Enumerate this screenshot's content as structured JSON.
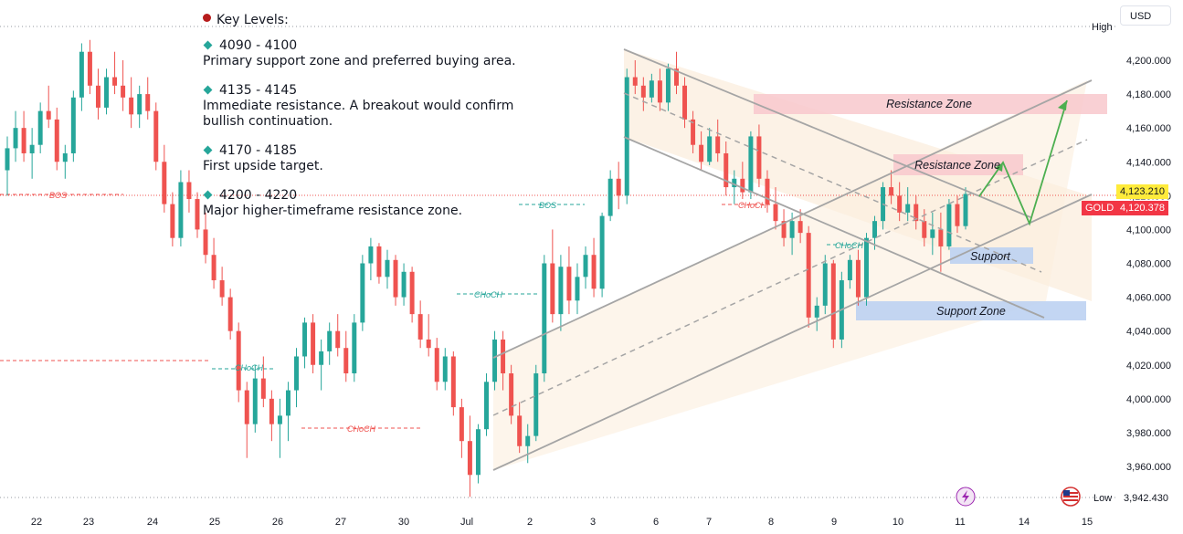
{
  "key_levels": {
    "title": "Key Levels:",
    "items": [
      {
        "range": "4090 - 4100",
        "desc": "Primary support zone and preferred buying area."
      },
      {
        "range": "4135 - 4145",
        "desc": "Immediate resistance. A breakout would confirm bullish continuation."
      },
      {
        "range": "4170 - 4185",
        "desc": "First upside target."
      },
      {
        "range": "4200 - 4220",
        "desc": "Major higher-timeframe resistance zone."
      }
    ]
  },
  "toolbar": {
    "currency": "USD"
  },
  "price_labels": {
    "high": "High",
    "low": "Low",
    "low_value": "3,942.430",
    "level_value": "4,123.210",
    "symbol": "GOLD",
    "last_value": "4,120.378"
  },
  "colors": {
    "bull": "#26a69a",
    "bear": "#ef5350",
    "resistance_zone": "#f8c8cc",
    "support_zone": "#bcd1f2",
    "channel_fill": "#fbeedd",
    "arrow": "#4caf50",
    "gold_tag": "#f23645",
    "level_tag": "#ffeb3b"
  },
  "chart_data": {
    "type": "candlestick",
    "symbol": "GOLD",
    "y_axis": {
      "min": 3940,
      "max": 4220,
      "ticks": [
        "4,200.000",
        "4,180.000",
        "4,160.000",
        "4,140.000",
        "4,120.000",
        "4,100.000",
        "4,080.000",
        "4,060.000",
        "4,040.000",
        "4,020.000",
        "4,000.000",
        "3,980.000",
        "3,960.000"
      ]
    },
    "x_axis": {
      "ticks": [
        "22",
        "23",
        "24",
        "25",
        "26",
        "27",
        "30",
        "Jul",
        "2",
        "3",
        "6",
        "7",
        "8",
        "9",
        "10",
        "11",
        "14",
        "15"
      ]
    },
    "zones": [
      {
        "label": "Resistance Zone",
        "low": 4169,
        "high": 4180
      },
      {
        "label": "Resistance Zone",
        "low": 4136,
        "high": 4144
      },
      {
        "label": "Support",
        "low": 4081,
        "high": 4090
      },
      {
        "label": "Support Zone",
        "low": 4052,
        "high": 4063
      }
    ],
    "structure_labels": [
      "BOS",
      "CHoCH",
      "CHoCH",
      "CHoCH",
      "BOS",
      "CHoCH",
      "CHoCH"
    ],
    "high_label": "High",
    "low_label": "Low",
    "low_value": 3942.43,
    "last_price": 4120.378,
    "level_price": 4123.21,
    "candles": [
      [
        4135,
        4155,
        4120,
        4148
      ],
      [
        4148,
        4170,
        4140,
        4160
      ],
      [
        4160,
        4170,
        4140,
        4145
      ],
      [
        4145,
        4160,
        4130,
        4150
      ],
      [
        4150,
        4175,
        4145,
        4170
      ],
      [
        4170,
        4185,
        4160,
        4165
      ],
      [
        4165,
        4172,
        4135,
        4140
      ],
      [
        4140,
        4150,
        4130,
        4145
      ],
      [
        4145,
        4182,
        4140,
        4178
      ],
      [
        4178,
        4210,
        4170,
        4205
      ],
      [
        4205,
        4212,
        4180,
        4185
      ],
      [
        4185,
        4195,
        4165,
        4172
      ],
      [
        4172,
        4195,
        4168,
        4190
      ],
      [
        4190,
        4205,
        4180,
        4185
      ],
      [
        4185,
        4200,
        4170,
        4178
      ],
      [
        4178,
        4190,
        4160,
        4168
      ],
      [
        4168,
        4185,
        4160,
        4180
      ],
      [
        4180,
        4190,
        4165,
        4170
      ],
      [
        4170,
        4175,
        4135,
        4140
      ],
      [
        4140,
        4150,
        4110,
        4115
      ],
      [
        4115,
        4122,
        4090,
        4095
      ],
      [
        4095,
        4135,
        4090,
        4128
      ],
      [
        4128,
        4135,
        4110,
        4118
      ],
      [
        4118,
        4122,
        4095,
        4100
      ],
      [
        4100,
        4110,
        4080,
        4085
      ],
      [
        4085,
        4095,
        4065,
        4070
      ],
      [
        4070,
        4078,
        4055,
        4060
      ],
      [
        4060,
        4065,
        4035,
        4040
      ],
      [
        4040,
        4045,
        3998,
        4005
      ],
      [
        4005,
        4010,
        3965,
        3985
      ],
      [
        3985,
        4020,
        3980,
        4012
      ],
      [
        4012,
        4025,
        3995,
        4000
      ],
      [
        4000,
        4005,
        3975,
        3985
      ],
      [
        3985,
        4000,
        3965,
        3990
      ],
      [
        3990,
        4010,
        3975,
        4005
      ],
      [
        4005,
        4030,
        3995,
        4025
      ],
      [
        4025,
        4048,
        4018,
        4045
      ],
      [
        4045,
        4050,
        4015,
        4020
      ],
      [
        4020,
        4035,
        4005,
        4028
      ],
      [
        4028,
        4045,
        4020,
        4040
      ],
      [
        4040,
        4050,
        4025,
        4030
      ],
      [
        4030,
        4040,
        4010,
        4015
      ],
      [
        4015,
        4050,
        4010,
        4045
      ],
      [
        4045,
        4085,
        4040,
        4080
      ],
      [
        4080,
        4095,
        4070,
        4090
      ],
      [
        4090,
        4092,
        4068,
        4072
      ],
      [
        4072,
        4088,
        4065,
        4082
      ],
      [
        4082,
        4085,
        4055,
        4060
      ],
      [
        4060,
        4080,
        4055,
        4075
      ],
      [
        4075,
        4078,
        4045,
        4050
      ],
      [
        4050,
        4058,
        4030,
        4035
      ],
      [
        4035,
        4050,
        4025,
        4030
      ],
      [
        4030,
        4036,
        4005,
        4010
      ],
      [
        4010,
        4030,
        4005,
        4025
      ],
      [
        4025,
        4028,
        3990,
        3995
      ],
      [
        3995,
        4000,
        3965,
        3975
      ],
      [
        3975,
        3990,
        3942,
        3955
      ],
      [
        3955,
        3985,
        3950,
        3982
      ],
      [
        3982,
        4015,
        3978,
        4010
      ],
      [
        4010,
        4040,
        4005,
        4035
      ],
      [
        4035,
        4040,
        4005,
        4015
      ],
      [
        4015,
        4020,
        3985,
        3990
      ],
      [
        3990,
        3998,
        3968,
        3972
      ],
      [
        3972,
        3985,
        3962,
        3978
      ],
      [
        3978,
        4020,
        3975,
        4015
      ],
      [
        4015,
        4085,
        4010,
        4080
      ],
      [
        4080,
        4100,
        4045,
        4050
      ],
      [
        4050,
        4085,
        4040,
        4078
      ],
      [
        4078,
        4090,
        4050,
        4058
      ],
      [
        4058,
        4080,
        4050,
        4072
      ],
      [
        4072,
        4090,
        4065,
        4085
      ],
      [
        4085,
        4095,
        4060,
        4065
      ],
      [
        4065,
        4110,
        4060,
        4108
      ],
      [
        4108,
        4135,
        4105,
        4130
      ],
      [
        4130,
        4140,
        4112,
        4120
      ],
      [
        4120,
        4195,
        4115,
        4190
      ],
      [
        4190,
        4200,
        4180,
        4185
      ],
      [
        4185,
        4190,
        4170,
        4178
      ],
      [
        4178,
        4192,
        4175,
        4188
      ],
      [
        4188,
        4195,
        4170,
        4175
      ],
      [
        4175,
        4198,
        4170,
        4195
      ],
      [
        4195,
        4205,
        4180,
        4185
      ],
      [
        4185,
        4190,
        4160,
        4165
      ],
      [
        4165,
        4170,
        4145,
        4150
      ],
      [
        4150,
        4158,
        4135,
        4140
      ],
      [
        4140,
        4160,
        4138,
        4155
      ],
      [
        4155,
        4165,
        4140,
        4145
      ],
      [
        4145,
        4152,
        4120,
        4125
      ],
      [
        4125,
        4135,
        4115,
        4130
      ],
      [
        4130,
        4140,
        4118,
        4122
      ],
      [
        4122,
        4158,
        4118,
        4155
      ],
      [
        4155,
        4162,
        4125,
        4130
      ],
      [
        4130,
        4135,
        4110,
        4115
      ],
      [
        4115,
        4125,
        4100,
        4105
      ],
      [
        4105,
        4112,
        4090,
        4095
      ],
      [
        4095,
        4110,
        4085,
        4105
      ],
      [
        4105,
        4112,
        4092,
        4098
      ],
      [
        4098,
        4102,
        4042,
        4048
      ],
      [
        4048,
        4060,
        4040,
        4055
      ],
      [
        4055,
        4085,
        4050,
        4080
      ],
      [
        4080,
        4082,
        4030,
        4035
      ],
      [
        4035,
        4075,
        4030,
        4070
      ],
      [
        4070,
        4085,
        4065,
        4082
      ],
      [
        4082,
        4088,
        4055,
        4060
      ],
      [
        4060,
        4098,
        4055,
        4095
      ],
      [
        4095,
        4108,
        4088,
        4105
      ],
      [
        4105,
        4128,
        4100,
        4125
      ],
      [
        4125,
        4135,
        4115,
        4120
      ],
      [
        4120,
        4128,
        4105,
        4110
      ],
      [
        4110,
        4125,
        4105,
        4115
      ],
      [
        4115,
        4120,
        4100,
        4105
      ],
      [
        4105,
        4112,
        4090,
        4095
      ],
      [
        4095,
        4110,
        4085,
        4100
      ],
      [
        4100,
        4110,
        4075,
        4090
      ],
      [
        4090,
        4118,
        4088,
        4115
      ],
      [
        4115,
        4120,
        4098,
        4102
      ],
      [
        4102,
        4125,
        4100,
        4121
      ]
    ]
  }
}
